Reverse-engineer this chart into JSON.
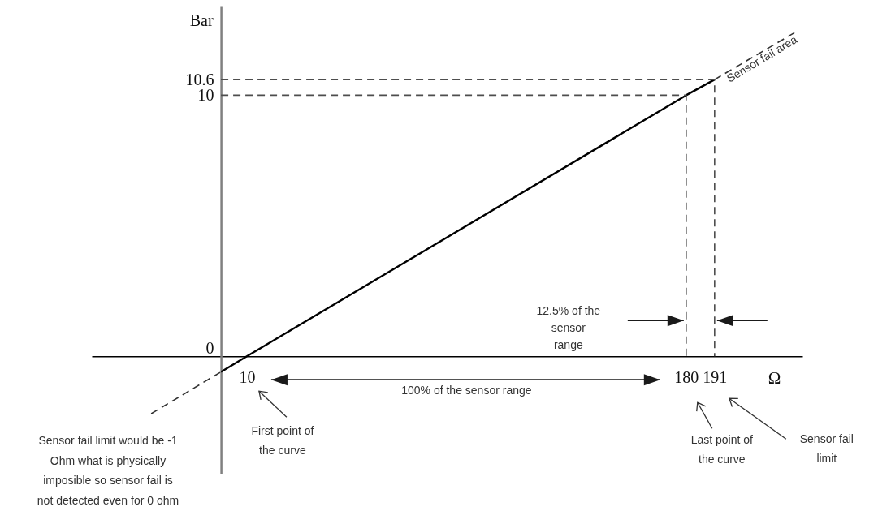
{
  "chart_data": {
    "type": "line",
    "xlabel": "Ω",
    "ylabel": "Bar",
    "xlim": [
      -50,
      225
    ],
    "ylim": [
      -4.5,
      13.4
    ],
    "xticks": [
      10,
      180,
      191
    ],
    "yticks": [
      0,
      10,
      10.6
    ],
    "series": [
      {
        "color": "#000000",
        "x": [
          0,
          10,
          180,
          191
        ],
        "values": [
          -0.6,
          0,
          10,
          10.6
        ]
      },
      {
        "color": "#333333",
        "line_style": "dashed",
        "x": [
          -27,
          0
        ],
        "values": [
          -2.2,
          -0.6
        ]
      },
      {
        "color": "#333333",
        "line_style": "dashed",
        "x": [
          191,
          222
        ],
        "values": [
          10.6,
          12.4
        ]
      },
      {
        "color": "#4d4d4d",
        "line_style": "dashed",
        "x": [
          0,
          180,
          180
        ],
        "values": [
          10,
          10,
          0
        ]
      },
      {
        "color": "#4d4d4d",
        "line_style": "dashed",
        "x": [
          0,
          191,
          191
        ],
        "values": [
          10.6,
          10.6,
          0
        ]
      }
    ],
    "annotations": [
      {
        "text": "Sensor fail area",
        "x": 191,
        "y": 10.6
      },
      "12.5% of the sensor range",
      "100% of the sensor range",
      "First point of the curve",
      "Last point of the curve",
      "Sensor fail limit",
      "Sensor fail limit would be -1 Ohm what is physically imposible so sensor fail is not detected even for 0 ohm"
    ]
  }
}
